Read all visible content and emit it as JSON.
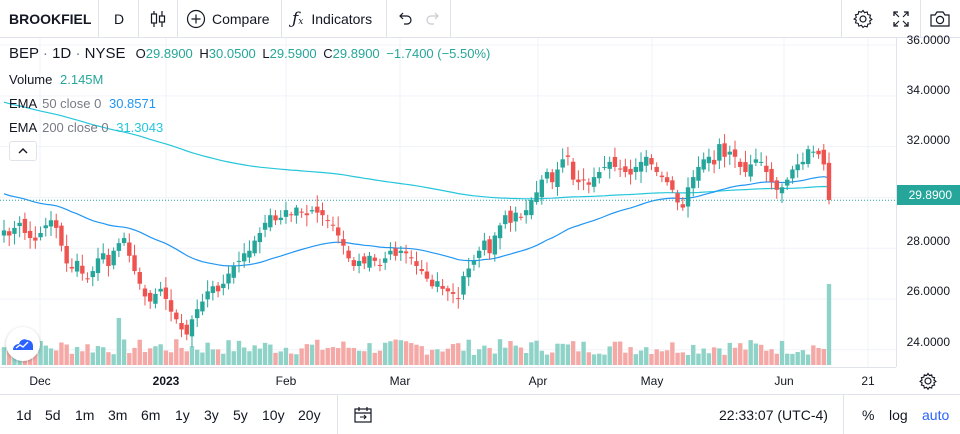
{
  "toolbar": {
    "symbol": "BROOKFIEL",
    "interval": "D",
    "compare_label": "Compare",
    "indicators_label": "Indicators"
  },
  "legend": {
    "ticker": "BEP",
    "interval": "1D",
    "exchange": "NYSE",
    "o_label": "O",
    "o_value": "29.8900",
    "h_label": "H",
    "h_value": "30.0500",
    "l_label": "L",
    "l_value": "29.5900",
    "c_label": "C",
    "c_value": "29.8900",
    "change": "−1.7400 (−5.50%)",
    "volume_label": "Volume",
    "volume_value": "2.145M",
    "ema50_label": "EMA",
    "ema50_params": "50 close 0",
    "ema50_value": "30.8571",
    "ema200_label": "EMA",
    "ema200_params": "200 close 0",
    "ema200_value": "31.3043"
  },
  "price_axis": {
    "labels": [
      "36.0000",
      "34.0000",
      "32.0000",
      "30.0000",
      "28.0000",
      "26.0000",
      "24.0000"
    ],
    "last_price": "29.8900"
  },
  "time_axis": {
    "labels": [
      "Dec",
      "2023",
      "Feb",
      "Mar",
      "Apr",
      "May",
      "Jun",
      "21"
    ]
  },
  "bottombar": {
    "ranges": [
      "1d",
      "5d",
      "1m",
      "3m",
      "6m",
      "1y",
      "3y",
      "5y",
      "10y",
      "20y"
    ],
    "clock": "22:33:07 (UTC-4)",
    "percent_label": "%",
    "log_label": "log",
    "auto_label": "auto"
  },
  "colors": {
    "up": "#26a69a",
    "down": "#ef5350",
    "ema50": "#2196f3",
    "ema200": "#26c6da",
    "vol_up": "#8fd3c8",
    "vol_down": "#f5a9a7",
    "accent": "#2962ff"
  },
  "chart_data": {
    "type": "candlestick",
    "symbol": "BEP",
    "ylim": [
      23.4,
      36.2
    ],
    "close_series": [
      28.7,
      28.5,
      28.8,
      29.0,
      28.6,
      28.4,
      28.3,
      28.6,
      28.9,
      29.1,
      28.8,
      28.1,
      27.4,
      27.2,
      27.5,
      27.0,
      26.8,
      27.1,
      27.6,
      27.8,
      27.3,
      27.9,
      28.2,
      28.4,
      27.7,
      27.1,
      26.6,
      26.1,
      25.9,
      26.2,
      26.4,
      26.0,
      25.5,
      25.2,
      24.8,
      24.6,
      25.2,
      25.6,
      25.9,
      26.3,
      26.5,
      26.3,
      26.6,
      27.0,
      27.3,
      27.5,
      27.8,
      27.9,
      28.3,
      28.6,
      29.0,
      29.3,
      29.1,
      29.2,
      29.5,
      29.3,
      29.6,
      29.4,
      29.3,
      29.5,
      29.4,
      29.3,
      29.1,
      28.9,
      28.5,
      28.1,
      27.6,
      27.3,
      27.5,
      27.4,
      27.7,
      27.5,
      27.3,
      27.6,
      27.9,
      27.7,
      27.9,
      27.8,
      27.6,
      27.3,
      27.1,
      26.8,
      26.5,
      26.7,
      26.4,
      26.3,
      26.2,
      26.0,
      26.9,
      27.2,
      27.5,
      27.9,
      28.3,
      27.8,
      28.5,
      28.9,
      29.3,
      29.0,
      29.4,
      29.2,
      29.5,
      29.9,
      30.2,
      30.7,
      31.0,
      30.6,
      31.1,
      31.5,
      31.6,
      30.7,
      30.6,
      30.7,
      30.5,
      30.8,
      31.0,
      31.2,
      31.4,
      31.2,
      31.1,
      31.0,
      30.9,
      31.2,
      31.4,
      31.6,
      31.3,
      31.0,
      30.8,
      30.6,
      30.3,
      29.8,
      29.6,
      30.4,
      30.8,
      31.2,
      31.5,
      31.6,
      31.3,
      32.1,
      31.6,
      31.8,
      31.6,
      31.2,
      31.0,
      31.3,
      31.5,
      31.4,
      31.0,
      30.6,
      30.3,
      30.4,
      30.7,
      31.1,
      31.3,
      31.4,
      31.9,
      31.8,
      31.7,
      31.3,
      29.9
    ],
    "x_tick_labels": [
      "Dec",
      "2023",
      "Feb",
      "Mar",
      "Apr",
      "May",
      "Jun",
      "21"
    ],
    "y_tick_labels": [
      "36.0000",
      "34.0000",
      "32.0000",
      "30.0000",
      "28.0000",
      "26.0000",
      "24.0000"
    ],
    "series": [
      {
        "name": "EMA 50 close 0"
      },
      {
        "name": "EMA 200 close 0"
      },
      {
        "name": "Volume"
      }
    ]
  }
}
